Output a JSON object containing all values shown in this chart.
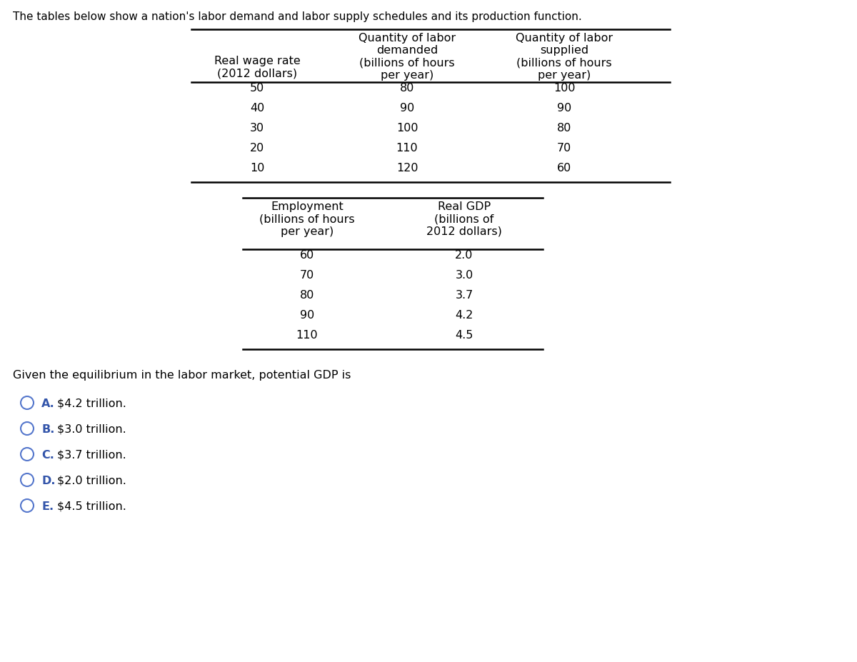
{
  "title": "The tables below show a nation's labor demand and labor supply schedules and its production function.",
  "table1_headers": [
    "Real wage rate\n(2012 dollars)",
    "Quantity of labor\ndemanded\n(billions of hours\nper year)",
    "Quantity of labor\nsupplied\n(billions of hours\nper year)"
  ],
  "table1_rows": [
    [
      50,
      80,
      100
    ],
    [
      40,
      90,
      90
    ],
    [
      30,
      100,
      80
    ],
    [
      20,
      110,
      70
    ],
    [
      10,
      120,
      60
    ]
  ],
  "table2_headers": [
    "Employment\n(billions of hours\nper year)",
    "Real GDP\n(billions of\n2012 dollars)"
  ],
  "table2_rows": [
    [
      60,
      "2.0"
    ],
    [
      70,
      "3.0"
    ],
    [
      80,
      "3.7"
    ],
    [
      90,
      "4.2"
    ],
    [
      110,
      "4.5"
    ]
  ],
  "question": "Given the equilibrium in the labor market, potential GDP is",
  "choices": [
    [
      "A.",
      "$4.2 trillion."
    ],
    [
      "B.",
      "$3.0 trillion."
    ],
    [
      "C.",
      "$3.7 trillion."
    ],
    [
      "D.",
      "$2.0 trillion."
    ],
    [
      "E.",
      "$4.5 trillion."
    ]
  ],
  "bg_color": "#ffffff",
  "text_color": "#000000",
  "choice_letter_color": "#3355aa",
  "circle_color": "#5577cc"
}
